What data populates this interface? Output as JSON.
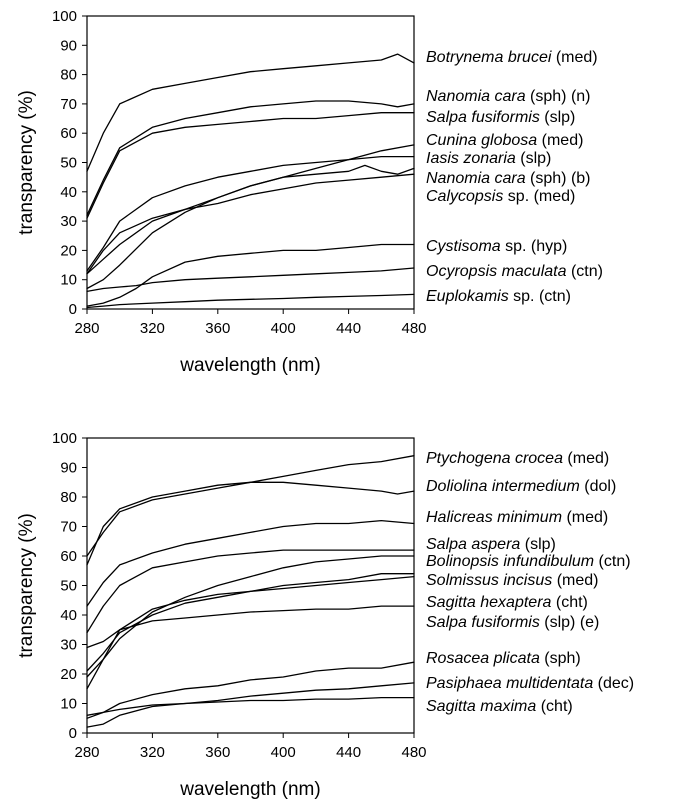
{
  "chart_data": [
    {
      "type": "line",
      "xlabel": "wavelength (nm)",
      "ylabel": "transparency (%)",
      "xlim": [
        280,
        480
      ],
      "ylim": [
        0,
        100
      ],
      "xticks": [
        "280",
        "320",
        "360",
        "400",
        "440",
        "480"
      ],
      "yticks": [
        "0",
        "10",
        "20",
        "30",
        "40",
        "50",
        "60",
        "70",
        "80",
        "90",
        "100"
      ],
      "grid": false,
      "legend_position": "right",
      "series": [
        {
          "name": "Botrynema brucei",
          "suffix": "(med)",
          "x": [
            280,
            290,
            300,
            320,
            340,
            360,
            380,
            400,
            420,
            440,
            460,
            470,
            480
          ],
          "y": [
            47,
            60,
            70,
            75,
            77,
            79,
            81,
            82,
            83,
            84,
            85,
            87,
            84
          ]
        },
        {
          "name": "Nanomia cara",
          "suffix": "(sph) (n)",
          "x": [
            280,
            290,
            300,
            320,
            340,
            360,
            380,
            400,
            420,
            440,
            460,
            470,
            480
          ],
          "y": [
            32,
            44,
            55,
            62,
            65,
            67,
            69,
            70,
            71,
            71,
            70,
            69,
            70
          ]
        },
        {
          "name": "Salpa fusiformis",
          "suffix": "(slp)",
          "x": [
            280,
            290,
            300,
            320,
            340,
            360,
            380,
            400,
            420,
            440,
            460,
            480
          ],
          "y": [
            31,
            43,
            54,
            60,
            62,
            63,
            64,
            65,
            65,
            66,
            67,
            67
          ]
        },
        {
          "name": "Cunina globosa",
          "suffix": "(med)",
          "x": [
            280,
            290,
            300,
            320,
            340,
            360,
            380,
            400,
            420,
            440,
            460,
            480
          ],
          "y": [
            12,
            17,
            22,
            30,
            34,
            38,
            42,
            45,
            48,
            51,
            54,
            56
          ]
        },
        {
          "name": "Iasis zonaria",
          "suffix": "(slp)",
          "x": [
            280,
            290,
            300,
            320,
            340,
            360,
            380,
            400,
            420,
            440,
            460,
            480
          ],
          "y": [
            13,
            21,
            30,
            38,
            42,
            45,
            47,
            49,
            50,
            51,
            52,
            52
          ]
        },
        {
          "name": "Nanomia cara",
          "suffix": "(sph) (b)",
          "x": [
            280,
            290,
            300,
            320,
            340,
            360,
            380,
            400,
            420,
            440,
            450,
            460,
            470,
            480
          ],
          "y": [
            7,
            10,
            15,
            26,
            33,
            38,
            42,
            45,
            46,
            47,
            49,
            47,
            46,
            48
          ]
        },
        {
          "name": "Calycopsis",
          "suffix": "sp. (med)",
          "x": [
            280,
            290,
            300,
            320,
            340,
            360,
            380,
            400,
            420,
            440,
            460,
            480
          ],
          "y": [
            12,
            20,
            26,
            31,
            34,
            36,
            39,
            41,
            43,
            44,
            45,
            46
          ]
        },
        {
          "name": "Cystisoma",
          "suffix": "sp. (hyp)",
          "x": [
            280,
            290,
            300,
            310,
            320,
            340,
            360,
            380,
            400,
            420,
            440,
            460,
            480
          ],
          "y": [
            1,
            2,
            4,
            7,
            11,
            16,
            18,
            19,
            20,
            20,
            21,
            22,
            22
          ]
        },
        {
          "name": "Ocyropsis maculata",
          "suffix": "(ctn)",
          "x": [
            280,
            290,
            300,
            310,
            320,
            340,
            360,
            380,
            400,
            420,
            440,
            460,
            480
          ],
          "y": [
            6,
            7,
            7.5,
            8,
            9,
            10,
            10.5,
            11,
            11.5,
            12,
            12.5,
            13,
            14
          ]
        },
        {
          "name": "Euplokamis",
          "suffix": "sp. (ctn)",
          "x": [
            280,
            290,
            300,
            320,
            340,
            360,
            380,
            400,
            420,
            440,
            460,
            480
          ],
          "y": [
            0.5,
            1,
            1.5,
            2,
            2.5,
            3,
            3.3,
            3.6,
            4,
            4.3,
            4.6,
            5
          ]
        }
      ]
    },
    {
      "type": "line",
      "xlabel": "wavelength (nm)",
      "ylabel": "transparency (%)",
      "xlim": [
        280,
        480
      ],
      "ylim": [
        0,
        100
      ],
      "xticks": [
        "280",
        "320",
        "360",
        "400",
        "440",
        "480"
      ],
      "yticks": [
        "0",
        "10",
        "20",
        "30",
        "40",
        "50",
        "60",
        "70",
        "80",
        "90",
        "100"
      ],
      "grid": false,
      "legend_position": "right",
      "series": [
        {
          "name": "Ptychogena crocea",
          "suffix": "(med)",
          "x": [
            280,
            290,
            300,
            320,
            340,
            360,
            380,
            400,
            420,
            440,
            460,
            480
          ],
          "y": [
            60,
            68,
            75,
            79,
            81,
            83,
            85,
            87,
            89,
            91,
            92,
            94
          ]
        },
        {
          "name": "Doliolina intermedium",
          "suffix": "(dol)",
          "x": [
            280,
            290,
            300,
            320,
            340,
            360,
            380,
            400,
            420,
            440,
            460,
            470,
            480
          ],
          "y": [
            57,
            70,
            76,
            80,
            82,
            84,
            85,
            85,
            84,
            83,
            82,
            81,
            82
          ]
        },
        {
          "name": "Halicreas minimum",
          "suffix": "(med)",
          "x": [
            280,
            290,
            300,
            320,
            340,
            360,
            380,
            400,
            420,
            440,
            460,
            480
          ],
          "y": [
            43,
            51,
            57,
            61,
            64,
            66,
            68,
            70,
            71,
            71,
            72,
            71
          ]
        },
        {
          "name": "Salpa aspera",
          "suffix": "(slp)",
          "x": [
            280,
            290,
            300,
            320,
            340,
            360,
            380,
            400,
            420,
            440,
            460,
            480
          ],
          "y": [
            34,
            43,
            50,
            56,
            58,
            60,
            61,
            62,
            62,
            62,
            62,
            62
          ]
        },
        {
          "name": "Bolinopsis infundibulum",
          "suffix": "(ctn)",
          "x": [
            280,
            290,
            300,
            320,
            340,
            360,
            380,
            400,
            420,
            440,
            460,
            480
          ],
          "y": [
            19,
            25,
            32,
            41,
            46,
            50,
            53,
            56,
            58,
            59,
            60,
            60
          ]
        },
        {
          "name": "Solmissus incisus",
          "suffix": "(med)",
          "x": [
            280,
            290,
            300,
            320,
            340,
            360,
            380,
            400,
            420,
            440,
            460,
            480
          ],
          "y": [
            21,
            27,
            34,
            40,
            44,
            46,
            48,
            50,
            51,
            52,
            54,
            54
          ]
        },
        {
          "name": "Sagitta hexaptera",
          "suffix": "(cht)",
          "x": [
            280,
            290,
            300,
            320,
            340,
            360,
            380,
            400,
            420,
            440,
            460,
            480
          ],
          "y": [
            15,
            25,
            35,
            42,
            45,
            47,
            48,
            49,
            50,
            51,
            52,
            53
          ]
        },
        {
          "name": "Salpa fusiformis",
          "suffix": "(slp) (e)",
          "x": [
            280,
            290,
            300,
            320,
            340,
            360,
            380,
            400,
            420,
            440,
            460,
            480
          ],
          "y": [
            29,
            31,
            35,
            38,
            39,
            40,
            41,
            41.5,
            42,
            42,
            43,
            43
          ]
        },
        {
          "name": "Rosacea plicata",
          "suffix": "(sph)",
          "x": [
            280,
            290,
            300,
            320,
            340,
            360,
            380,
            400,
            420,
            440,
            460,
            480
          ],
          "y": [
            5,
            7,
            10,
            13,
            15,
            16,
            18,
            19,
            21,
            22,
            22,
            24
          ]
        },
        {
          "name": "Pasiphaea multidentata",
          "suffix": "(dec)",
          "x": [
            280,
            290,
            300,
            320,
            340,
            360,
            380,
            400,
            420,
            440,
            460,
            480
          ],
          "y": [
            2,
            3,
            6,
            9,
            10,
            11,
            12.5,
            13.5,
            14.5,
            15,
            16,
            17
          ]
        },
        {
          "name": "Sagitta maxima",
          "suffix": "(cht)",
          "x": [
            280,
            290,
            300,
            320,
            340,
            360,
            380,
            400,
            420,
            440,
            460,
            480
          ],
          "y": [
            6,
            7,
            8,
            9.5,
            10,
            10.5,
            11,
            11,
            11.5,
            11.5,
            12,
            12
          ]
        }
      ]
    }
  ]
}
